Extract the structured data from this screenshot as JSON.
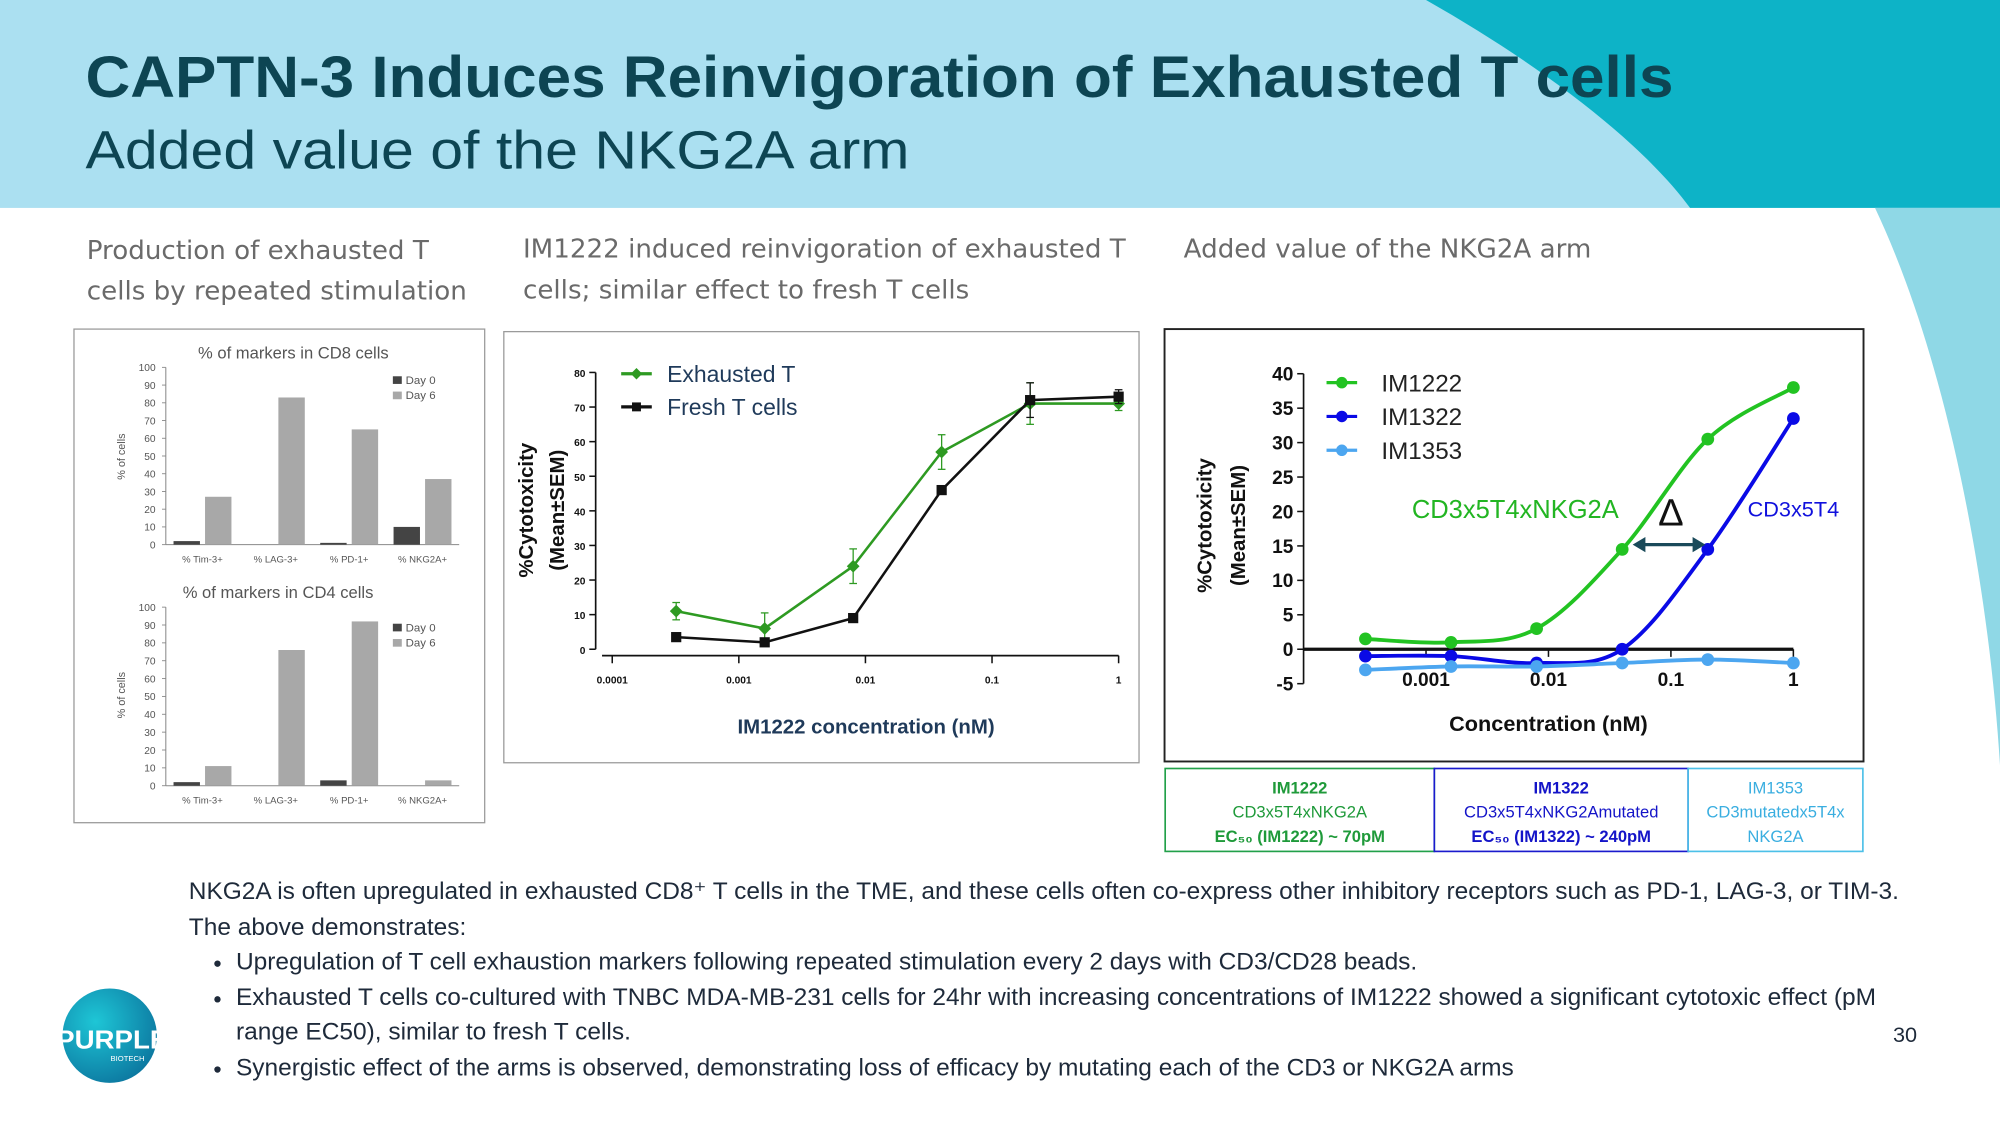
{
  "header": {
    "title": "CAPTN-3 Induces Reinvigoration of Exhausted T cells",
    "subtitle": "Added value of the NKG2A arm"
  },
  "captions": [
    "Production of exhausted T cells by repeated stimulation",
    "IM1222 induced reinvigoration of exhausted T cells; similar effect to fresh T cells",
    "Added value of the NKG2A arm"
  ],
  "chart_data": [
    {
      "type": "bar",
      "title": "% of markers in CD8 cells",
      "ylabel": "% of cells",
      "categories": [
        "% Tim-3+",
        "% LAG-3+",
        "% PD-1+",
        "% NKG2A+"
      ],
      "series": [
        {
          "name": "Day 0",
          "color": "#444444",
          "values": [
            2,
            0,
            1,
            10
          ]
        },
        {
          "name": "Day 6",
          "color": "#a8a8a8",
          "values": [
            27,
            83,
            65,
            37
          ]
        }
      ],
      "ylim": [
        0,
        100
      ],
      "yticks": [
        0,
        10,
        20,
        30,
        40,
        50,
        60,
        70,
        80,
        90,
        100
      ],
      "legend": "upper right"
    },
    {
      "type": "bar",
      "title": "% of markers in CD4 cells",
      "ylabel": "% of cells",
      "categories": [
        "% Tim-3+",
        "% LAG-3+",
        "% PD-1+",
        "% NKG2A+"
      ],
      "series": [
        {
          "name": "Day 0",
          "color": "#444444",
          "values": [
            2,
            0,
            3,
            0
          ]
        },
        {
          "name": "Day 6",
          "color": "#a8a8a8",
          "values": [
            11,
            76,
            92,
            3
          ]
        }
      ],
      "ylim": [
        0,
        100
      ],
      "yticks": [
        0,
        10,
        20,
        30,
        40,
        50,
        60,
        70,
        80,
        90,
        100
      ],
      "legend": "upper right"
    },
    {
      "type": "line",
      "xlabel": "IM1222 concentration (nM)",
      "ylabel": [
        "%Cytotoxicity",
        "(Mean±SEM)"
      ],
      "log_x": true,
      "x": [
        0.00032,
        0.0016,
        0.008,
        0.04,
        0.2,
        1
      ],
      "series": [
        {
          "name": "Exhausted T",
          "color": "#2e9a22",
          "marker": "diamond",
          "values": [
            11,
            6,
            24,
            57,
            71,
            71
          ],
          "errors": [
            2.5,
            4.5,
            5,
            5,
            6,
            2
          ]
        },
        {
          "name": "Fresh T cells",
          "color": "#111111",
          "marker": "square",
          "values": [
            3.5,
            2,
            9,
            46,
            72,
            73
          ],
          "errors": [
            1,
            1,
            1,
            1,
            5,
            2
          ]
        }
      ],
      "xlim": [
        0.0001,
        1
      ],
      "xticks": [
        0.0001,
        0.001,
        0.01,
        0.1,
        1
      ],
      "ylim": [
        0,
        80
      ],
      "yticks": [
        0,
        10,
        20,
        30,
        40,
        50,
        60,
        70,
        80
      ],
      "legend": "upper left"
    },
    {
      "type": "line",
      "smooth": true,
      "xlabel": "Concentration (nM)",
      "ylabel": [
        "%Cytotoxicity",
        "(Mean±SEM)"
      ],
      "log_x": true,
      "x": [
        0.00032,
        0.0016,
        0.008,
        0.04,
        0.2,
        1
      ],
      "series": [
        {
          "name": "IM1222",
          "color": "#22c322",
          "marker": "circle",
          "values": [
            1.5,
            1,
            3,
            14.5,
            30.5,
            38
          ]
        },
        {
          "name": "IM1322",
          "color": "#0a0ae6",
          "marker": "circle",
          "values": [
            -1,
            -1,
            -2,
            0,
            14.5,
            33.5
          ]
        },
        {
          "name": "IM1353",
          "color": "#4ca6f0",
          "marker": "circle",
          "values": [
            -3,
            -2.5,
            -2.5,
            -2,
            -1.5,
            -2
          ]
        }
      ],
      "xlim": [
        0.0001,
        1
      ],
      "xticks": [
        0.001,
        0.01,
        0.1,
        1
      ],
      "ylim": [
        -5,
        40
      ],
      "yticks": [
        -5,
        0,
        5,
        10,
        15,
        20,
        25,
        30,
        35,
        40
      ],
      "annotations": [
        "CD3x5T4xNKG2A",
        "Δ",
        "CD3x5T4"
      ],
      "legend": "upper left"
    }
  ],
  "legend_table": [
    [
      "IM1222",
      "CD3x5T4xNKG2A",
      "EC₅₀ (IM1222) ~ 70pM"
    ],
    [
      "IM1322",
      "CD3x5T4xNKG2Amutated",
      "EC₅₀ (IM1322) ~ 240pM"
    ],
    [
      "IM1353",
      "CD3mutatedx5T4x",
      "NKG2A"
    ]
  ],
  "body": {
    "intro": "NKG2A is often upregulated in exhausted CD8⁺ T cells in the TME, and these cells often co-express other inhibitory receptors such as PD-1, LAG-3, or TIM-3. The above demonstrates:",
    "bullets": [
      "Upregulation of T cell exhaustion markers following repeated stimulation every 2 days with CD3/CD28 beads.",
      "Exhausted T cells co-cultured with TNBC MDA-MB-231 cells for 24hr with increasing concentrations of IM1222 showed a significant cytotoxic effect (pM range EC50), similar to fresh T cells.",
      "Synergistic effect of the arms is observed, demonstrating loss of efficacy by mutating each of the CD3 or NKG2A arms"
    ]
  },
  "footer": {
    "page": "30",
    "logo": "PURPLE",
    "logo_sub": "BIOTECH"
  }
}
